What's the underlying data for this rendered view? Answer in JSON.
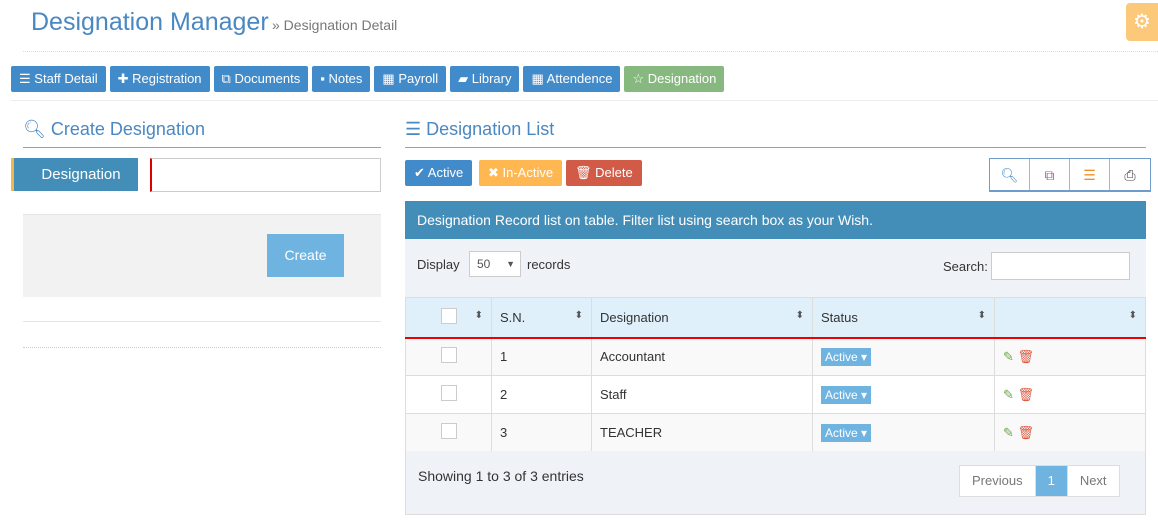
{
  "header": {
    "title": "Designation Manager",
    "breadcrumb": "» Designation Detail"
  },
  "nav": [
    {
      "label": "Staff Detail",
      "icon": "☰"
    },
    {
      "label": "Registration",
      "icon": "✚"
    },
    {
      "label": "Documents",
      "icon": "⧉"
    },
    {
      "label": "Notes",
      "icon": "▪"
    },
    {
      "label": "Payroll",
      "icon": "▦"
    },
    {
      "label": "Library",
      "icon": "▰"
    },
    {
      "label": "Attendence",
      "icon": "▦"
    },
    {
      "label": "Designation",
      "icon": "☆"
    }
  ],
  "create": {
    "title": "Create Designation",
    "field_label": "Designation",
    "field_value": "",
    "button": "Create"
  },
  "list": {
    "title": "Designation List",
    "active": "✔ Active",
    "inactive": "✖ In-Active",
    "delete": "🗑 Delete",
    "banner": "Designation Record list on table. Filter list using search box as your Wish.",
    "display": "Display",
    "page_size": "50",
    "records": "records",
    "search_label": "Search:",
    "columns": [
      "S.N.",
      "Designation",
      "Status"
    ],
    "rows": [
      {
        "sn": "1",
        "name": "Accountant",
        "status": "Active"
      },
      {
        "sn": "2",
        "name": "Staff",
        "status": "Active"
      },
      {
        "sn": "3",
        "name": "TEACHER",
        "status": "Active"
      }
    ],
    "summary": "Showing 1 to 3 of 3 entries",
    "pagination": {
      "prev": "Previous",
      "current": "1",
      "next": "Next"
    }
  },
  "colors": {
    "primary": "#428bca",
    "success": "#87b87f",
    "warning": "#ffb752",
    "danger": "#d15b47",
    "banner": "#438eb9"
  }
}
